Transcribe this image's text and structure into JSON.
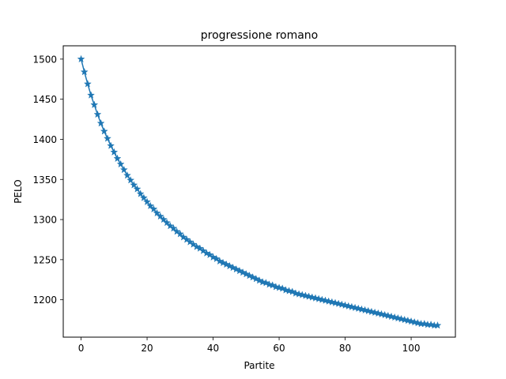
{
  "chart_data": {
    "type": "line",
    "title": "progressione romano",
    "xlabel": "Partite",
    "ylabel": "PELO",
    "xlim": [
      -5.4,
      113.4
    ],
    "ylim": [
      1153.4,
      1516.6
    ],
    "xticks": [
      0,
      20,
      40,
      60,
      80,
      100
    ],
    "yticks": [
      1200,
      1250,
      1300,
      1350,
      1400,
      1450,
      1500
    ],
    "grid": false,
    "marker": "star",
    "color": "#1f77b4",
    "x": [
      0,
      1,
      2,
      3,
      4,
      5,
      6,
      7,
      8,
      9,
      10,
      11,
      12,
      13,
      14,
      15,
      16,
      17,
      18,
      19,
      20,
      21,
      22,
      23,
      24,
      25,
      26,
      27,
      28,
      29,
      30,
      31,
      32,
      33,
      34,
      35,
      36,
      37,
      38,
      39,
      40,
      41,
      42,
      43,
      44,
      45,
      46,
      47,
      48,
      49,
      50,
      51,
      52,
      53,
      54,
      55,
      56,
      57,
      58,
      59,
      60,
      61,
      62,
      63,
      64,
      65,
      66,
      67,
      68,
      69,
      70,
      71,
      72,
      73,
      74,
      75,
      76,
      77,
      78,
      79,
      80,
      81,
      82,
      83,
      84,
      85,
      86,
      87,
      88,
      89,
      90,
      91,
      92,
      93,
      94,
      95,
      96,
      97,
      98,
      99,
      100,
      101,
      102,
      103,
      104,
      105,
      106,
      107,
      108
    ],
    "y": [
      1500,
      1484,
      1469,
      1455,
      1443,
      1431,
      1420,
      1410,
      1401,
      1392,
      1384,
      1376,
      1369,
      1362,
      1355,
      1349,
      1343,
      1338,
      1332,
      1327,
      1322,
      1317,
      1313,
      1308,
      1304,
      1300,
      1296,
      1292,
      1289,
      1285,
      1282,
      1278,
      1275,
      1272,
      1269,
      1266,
      1264,
      1261,
      1258,
      1256,
      1253,
      1251,
      1248,
      1246,
      1244,
      1242,
      1240,
      1238,
      1236,
      1234,
      1232,
      1230,
      1228,
      1226,
      1224,
      1222,
      1221,
      1219,
      1218,
      1216,
      1215,
      1214,
      1212,
      1211,
      1210,
      1208,
      1207,
      1206,
      1205,
      1204,
      1203,
      1202,
      1201,
      1200,
      1199,
      1198,
      1197,
      1196,
      1195,
      1194,
      1193,
      1192,
      1191,
      1190,
      1189,
      1188,
      1187,
      1186,
      1185,
      1184,
      1183,
      1182,
      1181,
      1180,
      1179,
      1178,
      1177,
      1176,
      1175,
      1174,
      1173,
      1172,
      1171,
      1170,
      1170,
      1169,
      1169,
      1168,
      1168
    ]
  }
}
